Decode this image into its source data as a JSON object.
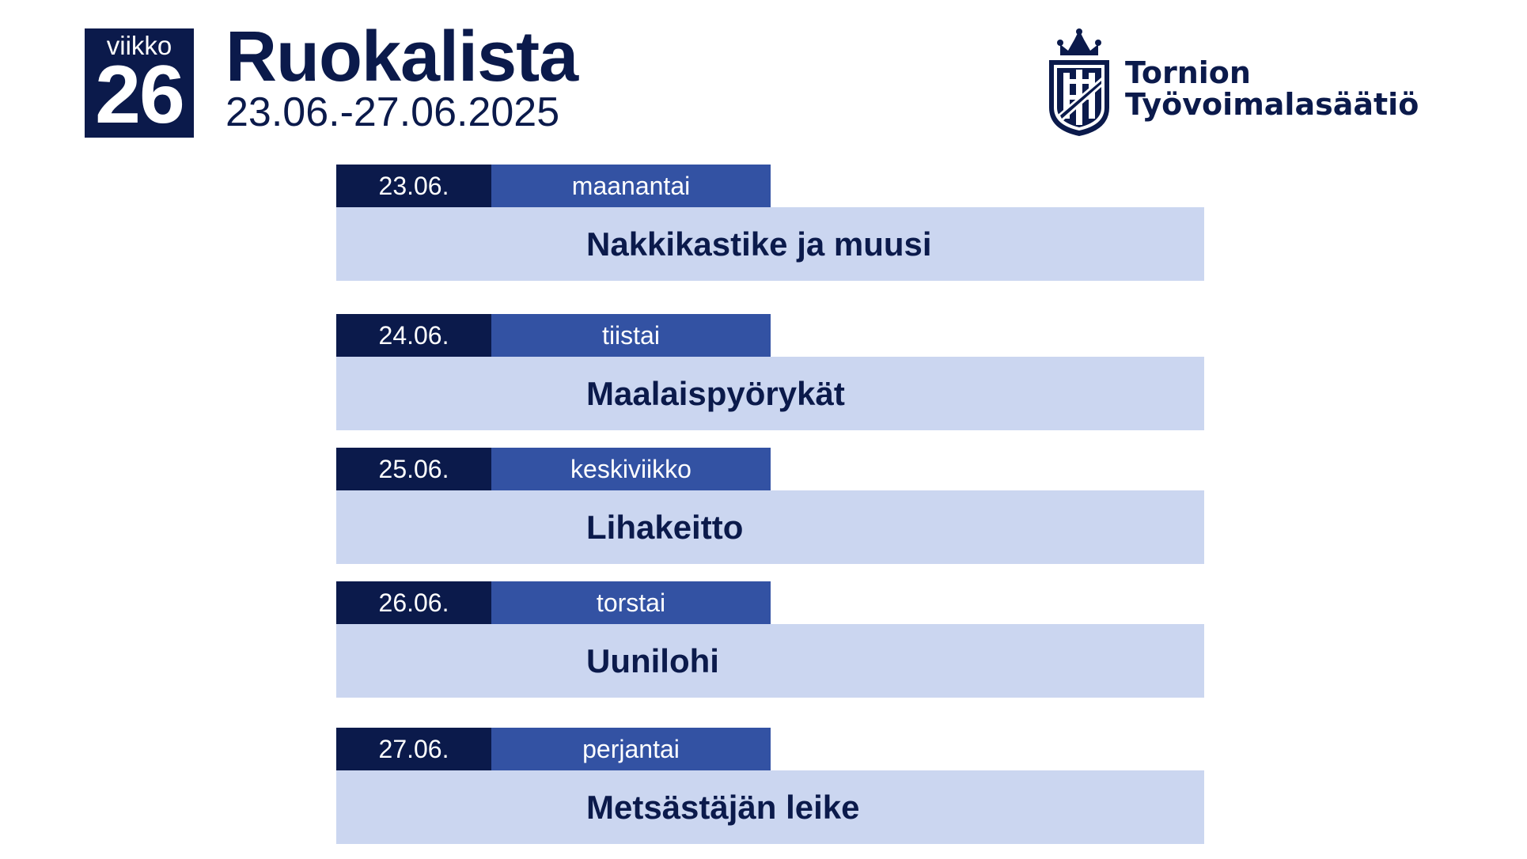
{
  "header": {
    "week_label": "viikko",
    "week_number": "26",
    "title": "Ruokalista",
    "date_range": "23.06.-27.06.2025"
  },
  "logo": {
    "line1": "Tornion",
    "line2": "Työvoimalasäätiö",
    "icon": "castle-shield-icon"
  },
  "colors": {
    "navy": "#0b1a4b",
    "blue": "#3352a3",
    "light_blue": "#cbd6f0"
  },
  "days": [
    {
      "date": "23.06.",
      "weekday": "maanantai",
      "meal": "Nakkikastike ja muusi"
    },
    {
      "date": "24.06.",
      "weekday": "tiistai",
      "meal": "Maalaispyörykät"
    },
    {
      "date": "25.06.",
      "weekday": "keskiviikko",
      "meal": "Lihakeitto"
    },
    {
      "date": "26.06.",
      "weekday": "torstai",
      "meal": "Uunilohi"
    },
    {
      "date": "27.06.",
      "weekday": "perjantai",
      "meal": "Metsästäjän leike"
    }
  ]
}
